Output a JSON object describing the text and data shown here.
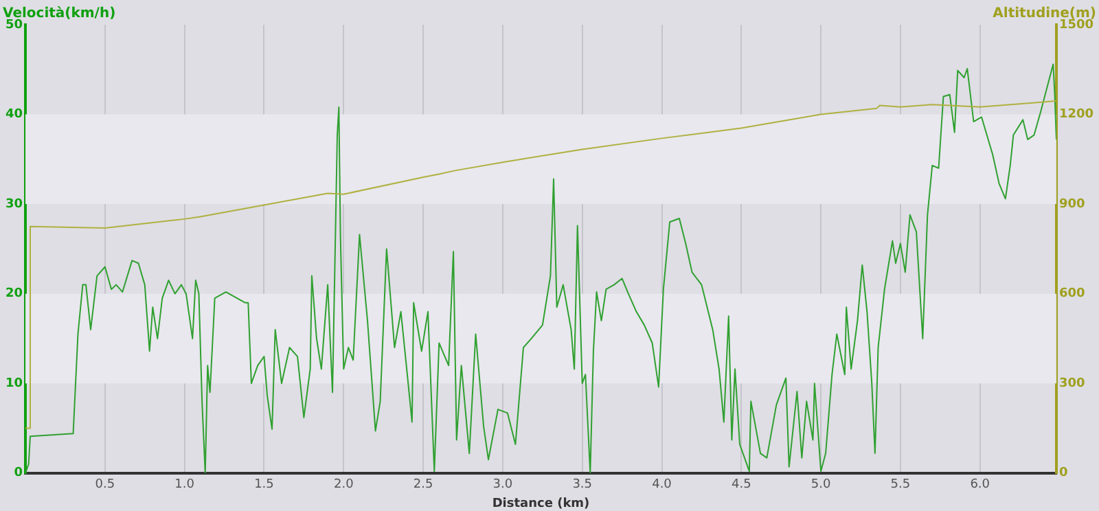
{
  "chart_data": {
    "type": "line",
    "xlabel": "Distance (km)",
    "ylabel": "Velocità(km/h)",
    "y2label": "Altitudine(m)",
    "xlim": [
      0,
      6.48
    ],
    "xticks": [
      0.5,
      {
        "value": 1,
        "label": "1.0"
      },
      1.5,
      {
        "value": 2,
        "label": "2.0"
      },
      2.5,
      {
        "value": 3,
        "label": "3.0"
      },
      3.5,
      {
        "value": 4,
        "label": "4.0"
      },
      4.5,
      {
        "value": 5,
        "label": "5.0"
      },
      5.5,
      {
        "value": 6,
        "label": "6.0"
      }
    ],
    "ylim": [
      0,
      50
    ],
    "yticks": [
      0,
      10,
      20,
      30,
      40,
      50
    ],
    "y2lim": [
      0,
      1500
    ],
    "y2ticks": [
      0,
      300,
      600,
      900,
      1200,
      1500
    ],
    "grid": "x",
    "legend": false,
    "marker": "none",
    "line_style": "solid",
    "bands": [
      {
        "axis": "y",
        "from": 10,
        "to": 20,
        "color": "#e8e8ee"
      },
      {
        "axis": "y",
        "from": 30,
        "to": 40,
        "color": "#e8e8ee"
      }
    ],
    "series": [
      {
        "color": "#b0b040",
        "axis": "y2",
        "x": [
          0.0,
          0.03,
          0.03,
          0.5,
          1.0,
          1.1,
          1.5,
          1.9,
          2.0,
          2.5,
          2.6,
          2.7,
          3.0,
          3.5,
          4.0,
          4.5,
          5.0,
          5.35,
          5.37,
          5.5,
          5.7,
          6.0,
          6.48
        ],
        "values": [
          150,
          150,
          825,
          820,
          850,
          858,
          897,
          936,
          933,
          990,
          1000,
          1012,
          1040,
          1083,
          1120,
          1154,
          1200,
          1220,
          1230,
          1225,
          1233,
          1225,
          1245
        ]
      },
      {
        "color": "#30a030",
        "x": [
          0,
          0.02,
          0.03,
          0.3,
          0.33,
          0.36,
          0.38,
          0.41,
          0.45,
          0.5,
          0.54,
          0.57,
          0.61,
          0.67,
          0.71,
          0.75,
          0.78,
          0.8,
          0.83,
          0.86,
          0.9,
          0.94,
          0.98,
          1.01,
          1.05,
          1.07,
          1.09,
          1.11,
          1.13,
          1.145,
          1.16,
          1.19,
          1.26,
          1.38,
          1.4,
          1.42,
          1.46,
          1.5,
          1.52,
          1.55,
          1.57,
          1.61,
          1.66,
          1.71,
          1.75,
          1.79,
          1.8,
          1.83,
          1.86,
          1.9,
          1.93,
          1.96,
          1.97,
          1.98,
          2.0,
          2.03,
          2.06,
          2.1,
          2.15,
          2.2,
          2.23,
          2.27,
          2.32,
          2.36,
          2.4,
          2.43,
          2.44,
          2.49,
          2.53,
          2.57,
          2.6,
          2.66,
          2.69,
          2.71,
          2.74,
          2.79,
          2.83,
          2.88,
          2.91,
          2.97,
          3.03,
          3.08,
          3.13,
          3.18,
          3.25,
          3.3,
          3.32,
          3.34,
          3.38,
          3.43,
          3.45,
          3.47,
          3.5,
          3.52,
          3.55,
          3.57,
          3.59,
          3.62,
          3.65,
          3.7,
          3.75,
          3.79,
          3.84,
          3.89,
          3.94,
          3.98,
          4.01,
          4.05,
          4.11,
          4.15,
          4.19,
          4.25,
          4.32,
          4.36,
          4.39,
          4.42,
          4.44,
          4.46,
          4.49,
          4.55,
          4.56,
          4.62,
          4.66,
          4.72,
          4.78,
          4.8,
          4.85,
          4.88,
          4.91,
          4.95,
          4.96,
          5.0,
          5.03,
          5.07,
          5.1,
          5.15,
          5.16,
          5.19,
          5.23,
          5.26,
          5.29,
          5.32,
          5.34,
          5.36,
          5.4,
          5.45,
          5.47,
          5.5,
          5.53,
          5.56,
          5.6,
          5.64,
          5.67,
          5.7,
          5.74,
          5.77,
          5.81,
          5.84,
          5.86,
          5.9,
          5.92,
          5.96,
          6.01,
          6.08,
          6.12,
          6.16,
          6.19,
          6.21,
          6.27,
          6.3,
          6.34,
          6.38,
          6.46,
          6.47,
          6.48
        ],
        "values": [
          0,
          1,
          4.1,
          4.4,
          15.5,
          21,
          21,
          16,
          22,
          23,
          20.5,
          21,
          20.2,
          23.7,
          23.4,
          21,
          13.6,
          18.5,
          15,
          19.5,
          21.5,
          20,
          21,
          20,
          15,
          21.5,
          20,
          8,
          0,
          12,
          9,
          19.5,
          20.2,
          19,
          19,
          10,
          12,
          13,
          8.6,
          4.9,
          16,
          10,
          14,
          13,
          6.2,
          11.6,
          22,
          15,
          11.6,
          21,
          9,
          37.7,
          40.8,
          26.4,
          11.6,
          14,
          12.6,
          26.6,
          17,
          4.7,
          8,
          25,
          14,
          18,
          11,
          5.7,
          19,
          13.6,
          18,
          0.2,
          14.5,
          12,
          24.7,
          3.7,
          12,
          2.2,
          15.5,
          5.2,
          1.5,
          7.1,
          6.7,
          3.2,
          14,
          15,
          16.5,
          22,
          32.8,
          18.5,
          21,
          16,
          11.6,
          27.6,
          10,
          11,
          0,
          13.6,
          20.2,
          17,
          20.5,
          21,
          21.7,
          20,
          18,
          16.5,
          14.5,
          9.6,
          20.5,
          28,
          28.4,
          25.6,
          22.4,
          21,
          16,
          11.6,
          5.7,
          17.5,
          3.7,
          11.6,
          3.2,
          0.2,
          8,
          2.2,
          1.7,
          7.6,
          10.6,
          0.7,
          9.1,
          1.7,
          8,
          3.7,
          10,
          0.2,
          2.2,
          11,
          15.5,
          11,
          18.5,
          11.6,
          17,
          23.2,
          18,
          10,
          2.2,
          14,
          20.5,
          25.9,
          23.4,
          25.6,
          22.4,
          28.8,
          26.9,
          15,
          28.8,
          34.3,
          34,
          42,
          42.2,
          38,
          44.9,
          44.1,
          45.1,
          39.2,
          39.7,
          35.5,
          32.3,
          30.6,
          34.3,
          37.7,
          39.4,
          37.2,
          37.7,
          40.2,
          45.6,
          42.2,
          37.2
        ]
      }
    ]
  }
}
